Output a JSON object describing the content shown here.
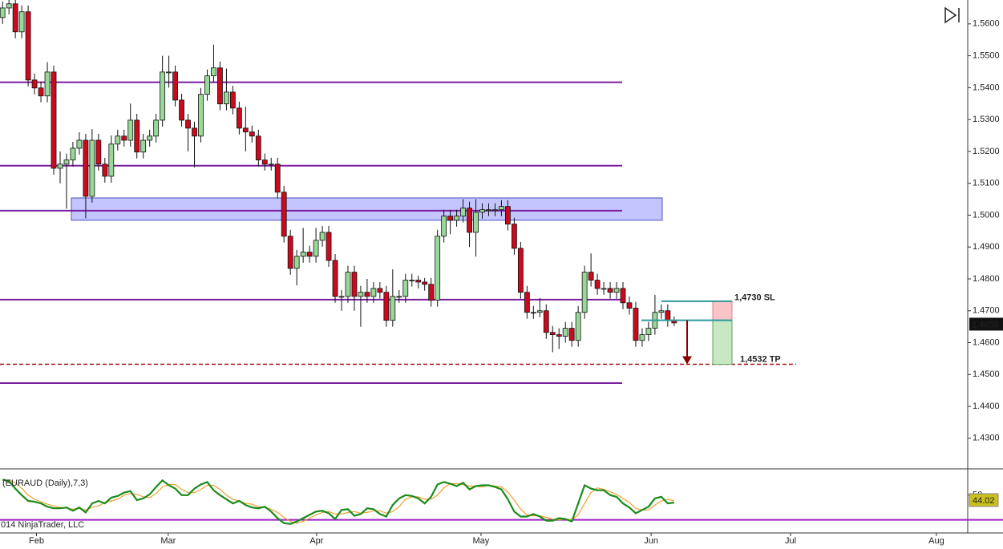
{
  "chart_data": [
    {
      "type": "candlestick",
      "ylim": [
        1.4204,
        1.5675
      ],
      "yticks": [
        {
          "value": 1.56,
          "label": "1.5600"
        },
        {
          "value": 1.55,
          "label": "1.5500"
        },
        {
          "value": 1.54,
          "label": "1.5400"
        },
        {
          "value": 1.53,
          "label": "1.5300"
        },
        {
          "value": 1.52,
          "label": "1.5200"
        },
        {
          "value": 1.51,
          "label": "1.5100"
        },
        {
          "value": 1.5,
          "label": "1.5000"
        },
        {
          "value": 1.49,
          "label": "1.4900"
        },
        {
          "value": 1.48,
          "label": "1.4800"
        },
        {
          "value": 1.47,
          "label": "1.4700"
        },
        {
          "value": 1.46,
          "label": "1.4600"
        },
        {
          "value": 1.45,
          "label": "1.4500"
        },
        {
          "value": 1.44,
          "label": "1.4400"
        },
        {
          "value": 1.43,
          "label": "1.4300"
        }
      ],
      "xlim": [
        -0.4,
        150.9
      ],
      "open": [
        1.562,
        1.565,
        1.5663,
        1.5575,
        1.5638,
        1.5424,
        1.5399,
        1.5374,
        1.5449,
        1.5147,
        1.516,
        1.5173,
        1.521,
        1.5235,
        1.5059,
        1.5235,
        1.516,
        1.5122,
        1.5223,
        1.5248,
        1.5235,
        1.5298,
        1.5198,
        1.5235,
        1.5248,
        1.5298,
        1.5449,
        1.5449,
        1.5361,
        1.5298,
        1.5273,
        1.5248,
        1.5379,
        1.5437,
        1.5462,
        1.5349,
        1.5386,
        1.5336,
        1.5273,
        1.5261,
        1.5248,
        1.5173,
        1.516,
        1.516,
        1.5072,
        1.4934,
        1.4833,
        1.4871,
        1.4884,
        1.4871,
        1.4921,
        1.4946,
        1.4858,
        1.4745,
        1.4745,
        1.4821,
        1.4745,
        1.4758,
        1.4745,
        1.477,
        1.4758,
        1.467,
        1.4745,
        1.4745,
        1.4796,
        1.4796,
        1.479,
        1.4783,
        1.4733,
        1.4934,
        1.4997,
        1.4984,
        1.4997,
        1.5022,
        1.4946,
        1.5009,
        1.5017,
        1.5017,
        1.5017,
        1.5027,
        1.4972,
        1.4896,
        1.4758,
        1.4695,
        1.4695,
        1.47,
        1.4632,
        1.4625,
        1.462,
        1.4645,
        1.4607,
        1.4695,
        1.4821,
        1.4796,
        1.477,
        1.477,
        1.4758,
        1.477,
        1.4725,
        1.4708,
        1.4607,
        1.4625,
        1.4645,
        1.4695,
        1.47,
        1.467
      ],
      "high": [
        1.567,
        1.5683,
        1.5683,
        1.5658,
        1.5658,
        1.5444,
        1.5419,
        1.548,
        1.5469,
        1.52,
        1.5193,
        1.523,
        1.526,
        1.5255,
        1.527,
        1.5255,
        1.518,
        1.525,
        1.5268,
        1.5268,
        1.535,
        1.5318,
        1.5255,
        1.5268,
        1.5318,
        1.55,
        1.55,
        1.5469,
        1.5381,
        1.5318,
        1.5293,
        1.5399,
        1.5457,
        1.5535,
        1.5482,
        1.546,
        1.5406,
        1.5356,
        1.534,
        1.5281,
        1.5268,
        1.5193,
        1.518,
        1.518,
        1.5092,
        1.4954,
        1.4891,
        1.496,
        1.4904,
        1.496,
        1.4966,
        1.4966,
        1.4878,
        1.4765,
        1.4841,
        1.4841,
        1.4778,
        1.48,
        1.479,
        1.479,
        1.4778,
        1.483,
        1.4765,
        1.4816,
        1.4816,
        1.481,
        1.4803,
        1.4803,
        1.4954,
        1.5017,
        1.5017,
        1.5017,
        1.505,
        1.5042,
        1.505,
        1.5037,
        1.5037,
        1.5037,
        1.5047,
        1.5047,
        1.4992,
        1.4916,
        1.4778,
        1.4715,
        1.474,
        1.472,
        1.4652,
        1.4645,
        1.4665,
        1.4665,
        1.4715,
        1.4841,
        1.488,
        1.4816,
        1.479,
        1.479,
        1.479,
        1.479,
        1.4745,
        1.4728,
        1.4645,
        1.4665,
        1.475,
        1.472,
        1.472,
        1.4682
      ],
      "low": [
        1.56,
        1.563,
        1.5555,
        1.5555,
        1.5404,
        1.5379,
        1.5354,
        1.5354,
        1.5127,
        1.51,
        1.502,
        1.5153,
        1.519,
        1.499,
        1.5039,
        1.514,
        1.5102,
        1.5102,
        1.5203,
        1.5215,
        1.5215,
        1.5178,
        1.5178,
        1.5215,
        1.5228,
        1.5278,
        1.54,
        1.5341,
        1.5278,
        1.52,
        1.515,
        1.5228,
        1.5359,
        1.5417,
        1.5329,
        1.5329,
        1.5316,
        1.5253,
        1.52,
        1.5228,
        1.5153,
        1.514,
        1.514,
        1.5052,
        1.4914,
        1.4813,
        1.478,
        1.4851,
        1.4851,
        1.4851,
        1.4901,
        1.4838,
        1.4725,
        1.47,
        1.4725,
        1.47,
        1.465,
        1.4725,
        1.4725,
        1.4738,
        1.465,
        1.465,
        1.4725,
        1.4725,
        1.4776,
        1.477,
        1.4763,
        1.4713,
        1.4713,
        1.4914,
        1.494,
        1.4964,
        1.4977,
        1.49,
        1.487,
        1.4989,
        1.4997,
        1.4997,
        1.4997,
        1.4952,
        1.4876,
        1.4738,
        1.4675,
        1.4675,
        1.468,
        1.4612,
        1.457,
        1.458,
        1.46,
        1.4587,
        1.4587,
        1.4675,
        1.4776,
        1.475,
        1.475,
        1.4738,
        1.4738,
        1.4705,
        1.4688,
        1.4587,
        1.4587,
        1.4605,
        1.4625,
        1.4675,
        1.465,
        1.4652
      ],
      "close": [
        1.565,
        1.5663,
        1.5575,
        1.5638,
        1.5424,
        1.5399,
        1.5374,
        1.5449,
        1.5147,
        1.516,
        1.5173,
        1.521,
        1.5235,
        1.5059,
        1.5235,
        1.516,
        1.5122,
        1.5223,
        1.5248,
        1.5235,
        1.5298,
        1.5198,
        1.5235,
        1.5248,
        1.5298,
        1.5449,
        1.5449,
        1.5361,
        1.5298,
        1.5273,
        1.5248,
        1.5379,
        1.5437,
        1.5462,
        1.5349,
        1.5386,
        1.5336,
        1.5273,
        1.5261,
        1.5248,
        1.5173,
        1.516,
        1.516,
        1.5072,
        1.4934,
        1.4833,
        1.4871,
        1.4884,
        1.4871,
        1.4921,
        1.4946,
        1.4858,
        1.4745,
        1.4745,
        1.4821,
        1.4745,
        1.4758,
        1.4745,
        1.477,
        1.4758,
        1.467,
        1.4745,
        1.4745,
        1.4796,
        1.4796,
        1.479,
        1.4783,
        1.4733,
        1.4934,
        1.4997,
        1.4984,
        1.4997,
        1.5022,
        1.4946,
        1.5009,
        1.5017,
        1.5017,
        1.5017,
        1.5027,
        1.4972,
        1.4896,
        1.4758,
        1.4695,
        1.4695,
        1.47,
        1.4632,
        1.4625,
        1.462,
        1.4645,
        1.4607,
        1.4695,
        1.4821,
        1.4796,
        1.477,
        1.477,
        1.4758,
        1.477,
        1.4725,
        1.4708,
        1.4607,
        1.4625,
        1.4645,
        1.4695,
        1.47,
        1.467,
        1.4662
      ],
      "up_color": "#98d898",
      "down_color": "#cc0a1e",
      "levels": {
        "values": [
          1.5417,
          1.5155,
          1.5014,
          1.4735,
          1.4473
        ],
        "color": "#7a1fa0"
      },
      "zone": {
        "values": [
          1.5054,
          1.4984
        ],
        "color": "#c4c4ff"
      },
      "trade": {
        "entry": 1.467,
        "stop_loss": {
          "value": 1.473,
          "label": "1,4730 SL"
        },
        "take_profit": {
          "value": 1.4532,
          "label": "1,4532 TP"
        }
      },
      "last_price": 1.4658
    },
    {
      "type": "line",
      "title": "(EURAUD (Daily),7,3)",
      "footer": "014 NinjaTrader, LLC",
      "ylim": [
        4,
        82
      ],
      "yticks": [
        50
      ],
      "xlim": [
        -0.4,
        150.9
      ],
      "xticks": [
        {
          "value": 5.3,
          "label": "Feb"
        },
        {
          "value": 25.9,
          "label": "Mar"
        },
        {
          "value": 49.1,
          "label": "Apr"
        },
        {
          "value": 74.8,
          "label": "May"
        },
        {
          "value": 101.4,
          "label": "Jun"
        },
        {
          "value": 123.2,
          "label": "Jul"
        },
        {
          "value": 146.0,
          "label": "Aug"
        }
      ],
      "hline": {
        "value": 20,
        "color": "#9a20c8"
      },
      "last_value": 44.02,
      "series": [
        {
          "color": "#f0a030",
          "values": [
            68,
            68,
            65,
            58,
            50,
            45,
            42,
            39,
            37,
            35,
            34,
            33,
            34,
            32,
            35,
            37,
            41,
            43,
            45,
            50,
            52,
            51,
            48,
            47,
            52,
            60,
            63,
            63,
            57,
            53,
            53,
            57,
            62,
            62,
            57,
            50,
            45,
            43,
            40,
            39,
            36,
            35,
            33,
            29,
            23,
            18,
            16,
            18,
            22,
            26,
            29,
            30,
            27,
            27,
            29,
            30,
            28,
            29,
            31,
            31,
            28,
            30,
            36,
            45,
            48,
            48,
            45,
            45,
            50,
            59,
            64,
            64,
            63,
            61,
            61,
            60,
            62,
            61,
            60,
            54,
            44,
            33,
            26,
            25,
            25,
            23,
            21,
            20,
            21,
            20,
            26,
            40,
            53,
            59,
            57,
            54,
            51,
            46,
            41,
            34,
            32,
            32,
            38,
            43,
            45,
            43
          ]
        },
        {
          "color": "#1a8c1a",
          "values": [
            69,
            67,
            58,
            50,
            43,
            42,
            40,
            36,
            34,
            34,
            35,
            31,
            35,
            29,
            40,
            43,
            40,
            47,
            49,
            53,
            55,
            44,
            46,
            51,
            60,
            68,
            62,
            58,
            50,
            50,
            58,
            63,
            66,
            56,
            50,
            45,
            40,
            43,
            38,
            35,
            34,
            36,
            30,
            22,
            16,
            15,
            18,
            22,
            26,
            30,
            31,
            28,
            21,
            32,
            33,
            25,
            27,
            34,
            33,
            27,
            24,
            38,
            46,
            50,
            49,
            46,
            40,
            48,
            63,
            66,
            64,
            61,
            65,
            57,
            61,
            62,
            62,
            60,
            57,
            45,
            30,
            24,
            24,
            27,
            24,
            19,
            19,
            22,
            21,
            18,
            40,
            62,
            58,
            56,
            56,
            50,
            48,
            40,
            35,
            28,
            32,
            36,
            46,
            48,
            40,
            41
          ]
        }
      ]
    }
  ]
}
